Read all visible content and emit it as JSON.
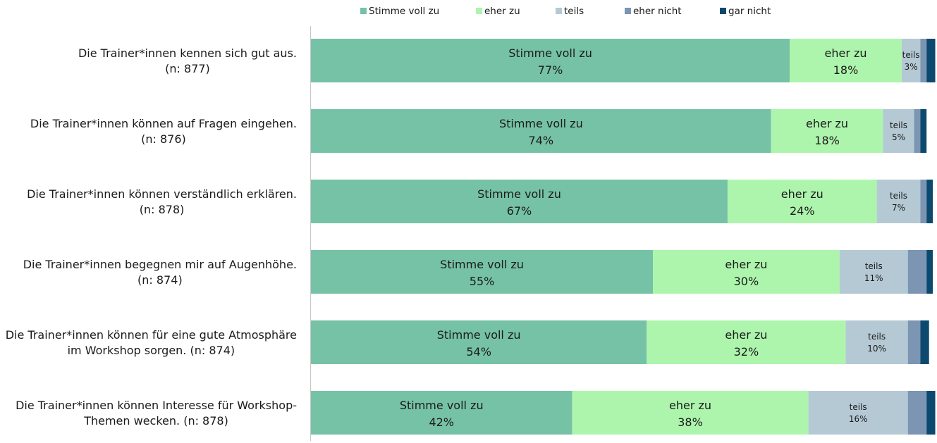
{
  "chart_data": {
    "type": "bar",
    "orientation": "horizontal",
    "stacked": true,
    "normalized": true,
    "legend_position": "top",
    "categories": [
      [
        "Die Trainer*innen kennen sich gut aus.",
        "(n: 877)"
      ],
      [
        "Die Trainer*innen können auf Fragen eingehen.",
        "(n: 876)"
      ],
      [
        "Die Trainer*innen können verständlich erklären.",
        "(n: 878)"
      ],
      [
        "Die Trainer*innen begegnen mir auf Augenhöhe.",
        "(n: 874)"
      ],
      [
        "Die Trainer*innen können für eine gute Atmosphäre",
        "im Workshop sorgen. (n: 874)"
      ],
      [
        "Die Trainer*innen können Interesse für Workshop-",
        "Themen wecken. (n: 878)"
      ]
    ],
    "series": [
      {
        "name": "Stimme voll zu",
        "color": "#76c2a6",
        "values": [
          77,
          74,
          67,
          55,
          54,
          42
        ],
        "labels": [
          "77%",
          "74%",
          "67%",
          "55%",
          "54%",
          "42%"
        ],
        "label_style": "big"
      },
      {
        "name": "eher zu",
        "color": "#adf5ad",
        "values": [
          18,
          18,
          24,
          30,
          32,
          38
        ],
        "labels": [
          "18%",
          "18%",
          "24%",
          "30%",
          "32%",
          "38%"
        ],
        "label_style": "big"
      },
      {
        "name": "teils",
        "color": "#b5c9d4",
        "values": [
          3,
          5,
          7,
          11,
          10,
          16
        ],
        "labels": [
          "3%",
          "5%",
          "7%",
          "11%",
          "10%",
          "16%"
        ],
        "label_style": "small"
      },
      {
        "name": "eher nicht",
        "color": "#7b95b2",
        "values": [
          1,
          1,
          1,
          3,
          2,
          3
        ],
        "labels": null,
        "label_style": "none"
      },
      {
        "name": "gar nicht",
        "color": "#0b4a6e",
        "values": [
          1.4,
          1,
          1,
          1,
          1.4,
          1.4
        ],
        "labels": null,
        "label_style": "none"
      }
    ],
    "xlim": [
      0,
      100
    ]
  }
}
